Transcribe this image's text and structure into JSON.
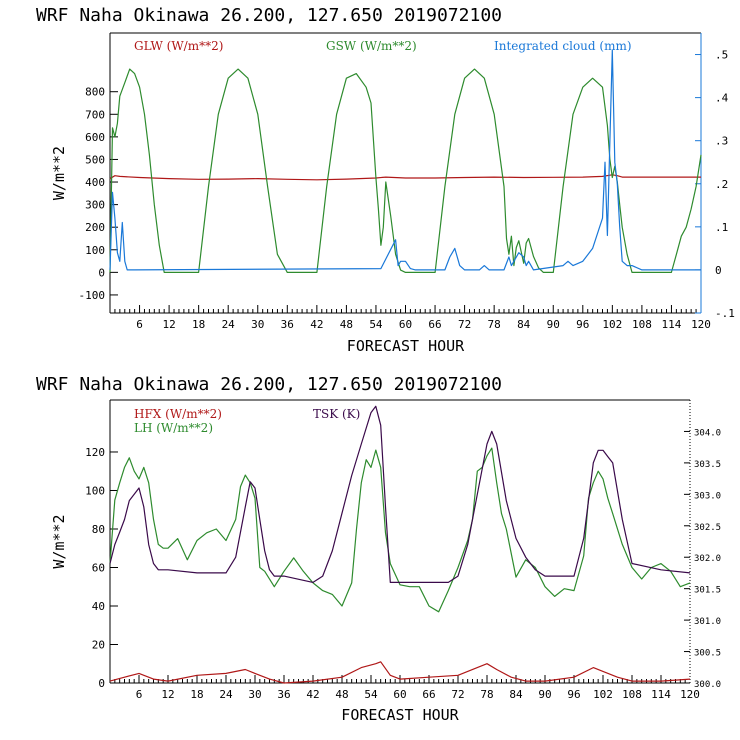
{
  "colors": {
    "red": "#b01818",
    "green": "#2e8b2e",
    "blue": "#1a78d8",
    "purple": "#3a0a4a"
  },
  "chart_data": [
    {
      "type": "line",
      "title": "WRF   Naha Okinawa  26.200, 127.650  2019072100",
      "xlabel": "FORECAST HOUR",
      "ylabel": "W/m**2",
      "xlim": [
        0,
        120
      ],
      "ylim": [
        -180,
        1060
      ],
      "x_ticks": [
        6,
        12,
        18,
        24,
        30,
        36,
        42,
        48,
        54,
        60,
        66,
        72,
        78,
        84,
        90,
        96,
        102,
        108,
        114,
        120
      ],
      "y_ticks": [
        -100,
        0,
        100,
        200,
        300,
        400,
        500,
        600,
        700,
        800
      ],
      "y2_label": "",
      "y2lim": [
        -0.1,
        0.55
      ],
      "y2_ticks": [
        {
          "v": -0.1,
          "t": "-.1"
        },
        {
          "v": 0,
          "t": "0"
        },
        {
          "v": 0.1,
          "t": ".1"
        },
        {
          "v": 0.2,
          "t": ".2"
        },
        {
          "v": 0.3,
          "t": ".3"
        },
        {
          "v": 0.4,
          "t": ".4"
        },
        {
          "v": 0.5,
          "t": ".5"
        }
      ],
      "legend": [
        {
          "label": "GLW (W/m**2)",
          "color": "#b01818"
        },
        {
          "label": "GSW (W/m**2)",
          "color": "#2e8b2e"
        },
        {
          "label": "Integrated cloud (mm)",
          "color": "#1a78d8"
        }
      ],
      "series": [
        {
          "name": "GLW (W/m**2)",
          "axis": "left",
          "color": "#b01818",
          "x": [
            0,
            1,
            2,
            6,
            12,
            18,
            24,
            30,
            36,
            42,
            48,
            54,
            56,
            60,
            66,
            72,
            78,
            84,
            90,
            96,
            100,
            102,
            103,
            104,
            108,
            114,
            120
          ],
          "values": [
            415,
            428,
            425,
            420,
            415,
            412,
            413,
            415,
            412,
            410,
            413,
            418,
            422,
            418,
            418,
            420,
            422,
            420,
            421,
            422,
            425,
            432,
            428,
            422,
            422,
            422,
            422
          ]
        },
        {
          "name": "GSW (W/m**2)",
          "axis": "left",
          "color": "#2e8b2e",
          "x": [
            0,
            0.5,
            1,
            1.5,
            2,
            3,
            4,
            5,
            6,
            7,
            8,
            9,
            10,
            11,
            12,
            18,
            20,
            22,
            24,
            26,
            28,
            30,
            32,
            34,
            36,
            42,
            44,
            46,
            48,
            50,
            52,
            53,
            54,
            54.5,
            55,
            55.5,
            56,
            57,
            58,
            59,
            60,
            66,
            68,
            70,
            72,
            74,
            76,
            78,
            80,
            80.5,
            81,
            81.5,
            82,
            82.5,
            83,
            84,
            84.5,
            85,
            86,
            87,
            88,
            90,
            92,
            94,
            96,
            98,
            100,
            101,
            101.5,
            102,
            102.5,
            103,
            103.5,
            104,
            105,
            106,
            108,
            114,
            115,
            116,
            117,
            118,
            119,
            120
          ],
          "values": [
            0,
            640,
            600,
            660,
            780,
            840,
            900,
            880,
            820,
            700,
            520,
            300,
            120,
            0,
            0,
            0,
            380,
            700,
            860,
            900,
            860,
            700,
            380,
            80,
            0,
            0,
            380,
            700,
            860,
            880,
            820,
            750,
            420,
            280,
            120,
            200,
            400,
            250,
            80,
            10,
            0,
            0,
            380,
            700,
            860,
            900,
            860,
            700,
            380,
            150,
            80,
            160,
            30,
            110,
            140,
            40,
            130,
            150,
            70,
            20,
            0,
            0,
            380,
            700,
            820,
            860,
            820,
            650,
            500,
            420,
            470,
            400,
            300,
            200,
            80,
            0,
            0,
            0,
            80,
            160,
            200,
            280,
            380,
            520
          ]
        },
        {
          "name": "Integrated cloud (mm)",
          "axis": "right",
          "color": "#1a78d8",
          "x": [
            0,
            0.5,
            1,
            1.5,
            2,
            2.5,
            3,
            3.5,
            4,
            5,
            55,
            58,
            58.5,
            59,
            60,
            61,
            62,
            68,
            69,
            70,
            71,
            72,
            75,
            76,
            77,
            80,
            81,
            81.5,
            82,
            83,
            84,
            84.5,
            85,
            86,
            92,
            93,
            94,
            96,
            98,
            100,
            100.5,
            101,
            101.5,
            102,
            102.5,
            103,
            103.5,
            104,
            105,
            106,
            108,
            120
          ],
          "values": [
            0,
            0.18,
            0.12,
            0.04,
            0.02,
            0.11,
            0.02,
            0,
            0,
            0,
            0.003,
            0.07,
            0.01,
            0.02,
            0.02,
            0.003,
            0,
            0,
            0.03,
            0.05,
            0.01,
            0,
            0,
            0.01,
            0,
            0,
            0.03,
            0.01,
            0.02,
            0.04,
            0.03,
            0.01,
            0.02,
            0,
            0.01,
            0.02,
            0.01,
            0.02,
            0.05,
            0.12,
            0.25,
            0.08,
            0.3,
            0.51,
            0.25,
            0.2,
            0.1,
            0.02,
            0.01,
            0.01,
            0,
            0
          ]
        }
      ]
    },
    {
      "type": "line",
      "title": "WRF   Naha Okinawa  26.200, 127.650  2019072100",
      "xlabel": "FORECAST HOUR",
      "ylabel": "W/m**2",
      "xlim": [
        0,
        120
      ],
      "ylim": [
        0,
        147
      ],
      "x_ticks": [
        6,
        12,
        18,
        24,
        30,
        36,
        42,
        48,
        54,
        60,
        66,
        72,
        78,
        84,
        90,
        96,
        102,
        108,
        114,
        120
      ],
      "y_ticks": [
        0,
        20,
        40,
        60,
        80,
        100,
        120
      ],
      "y2lim": [
        300.0,
        304.5
      ],
      "y2_ticks": [
        {
          "v": 300.0,
          "t": "300.0"
        },
        {
          "v": 300.5,
          "t": "300.5"
        },
        {
          "v": 301.0,
          "t": "301.0"
        },
        {
          "v": 301.5,
          "t": "301.5"
        },
        {
          "v": 302.0,
          "t": "302.0"
        },
        {
          "v": 302.5,
          "t": "302.5"
        },
        {
          "v": 303.0,
          "t": "303.0"
        },
        {
          "v": 303.5,
          "t": "303.5"
        },
        {
          "v": 304.0,
          "t": "304.0"
        }
      ],
      "legend": [
        {
          "label": "HFX (W/m**2)",
          "color": "#b01818"
        },
        {
          "label": "LH  (W/m**2)",
          "color": "#2e8b2e"
        },
        {
          "label": "TSK (K)",
          "color": "#3a0a4a"
        }
      ],
      "series": [
        {
          "name": "HFX (W/m**2)",
          "axis": "left",
          "color": "#b01818",
          "x": [
            0,
            3,
            6,
            9,
            12,
            18,
            24,
            28,
            30,
            33,
            36,
            42,
            48,
            52,
            55,
            56,
            58,
            60,
            66,
            72,
            76,
            78,
            80,
            83,
            86,
            90,
            96,
            100,
            102,
            105,
            108,
            114,
            120
          ],
          "values": [
            1,
            3,
            5,
            2,
            1,
            4,
            5,
            7,
            5,
            2,
            0,
            1,
            3,
            8,
            10,
            11,
            4,
            2,
            3,
            4,
            8,
            10,
            7,
            3,
            1,
            1,
            3,
            8,
            6,
            3,
            1,
            1,
            2
          ]
        },
        {
          "name": "LH  (W/m**2)",
          "axis": "left",
          "color": "#2e8b2e",
          "x": [
            0,
            1,
            2,
            3,
            4,
            5,
            6,
            7,
            8,
            9,
            10,
            11,
            12,
            14,
            16,
            18,
            20,
            22,
            24,
            26,
            27,
            28,
            29,
            30,
            31,
            32,
            34,
            36,
            38,
            40,
            42,
            44,
            46,
            48,
            50,
            51,
            52,
            53,
            54,
            55,
            56,
            57,
            58,
            60,
            62,
            64,
            66,
            68,
            70,
            72,
            74,
            75,
            76,
            77,
            78,
            79,
            80,
            81,
            82,
            84,
            86,
            88,
            90,
            92,
            94,
            96,
            98,
            99,
            100,
            101,
            102,
            103,
            104,
            106,
            108,
            110,
            112,
            114,
            116,
            118,
            120
          ],
          "values": [
            62,
            95,
            104,
            112,
            117,
            110,
            106,
            112,
            104,
            85,
            72,
            70,
            70,
            75,
            64,
            74,
            78,
            80,
            74,
            85,
            102,
            108,
            104,
            96,
            60,
            58,
            50,
            58,
            65,
            58,
            52,
            48,
            46,
            40,
            52,
            80,
            104,
            116,
            112,
            121,
            112,
            78,
            62,
            51,
            50,
            50,
            40,
            37,
            48,
            60,
            74,
            85,
            110,
            112,
            118,
            122,
            104,
            88,
            80,
            55,
            64,
            60,
            50,
            45,
            49,
            48,
            66,
            96,
            104,
            110,
            106,
            96,
            88,
            72,
            60,
            54,
            60,
            62,
            58,
            50,
            52
          ]
        },
        {
          "name": "TSK (K)",
          "axis": "right",
          "color": "#3a0a4a",
          "x": [
            0,
            1,
            2,
            3,
            4,
            5,
            6,
            7,
            8,
            9,
            10,
            12,
            18,
            24,
            26,
            28,
            29,
            30,
            31,
            32,
            33,
            34,
            36,
            42,
            44,
            46,
            48,
            50,
            52,
            54,
            55,
            56,
            57,
            58,
            60,
            66,
            70,
            72,
            74,
            76,
            78,
            79,
            80,
            82,
            84,
            86,
            88,
            90,
            96,
            98,
            100,
            101,
            102,
            103,
            104,
            106,
            108,
            114,
            120
          ],
          "values": [
            301.9,
            302.2,
            302.4,
            302.6,
            302.9,
            303.0,
            303.1,
            302.8,
            302.2,
            301.9,
            301.8,
            301.8,
            301.75,
            301.75,
            302.0,
            302.8,
            303.2,
            303.1,
            302.6,
            302.1,
            301.8,
            301.7,
            301.7,
            301.6,
            301.7,
            302.1,
            302.7,
            303.3,
            303.8,
            304.3,
            304.4,
            304.1,
            302.8,
            301.6,
            301.6,
            301.6,
            301.6,
            301.7,
            302.2,
            303.0,
            303.8,
            304.0,
            303.8,
            302.9,
            302.3,
            302.0,
            301.8,
            301.7,
            301.7,
            302.3,
            303.5,
            303.7,
            303.7,
            303.6,
            303.5,
            302.6,
            301.9,
            301.8,
            301.75
          ]
        }
      ]
    }
  ]
}
